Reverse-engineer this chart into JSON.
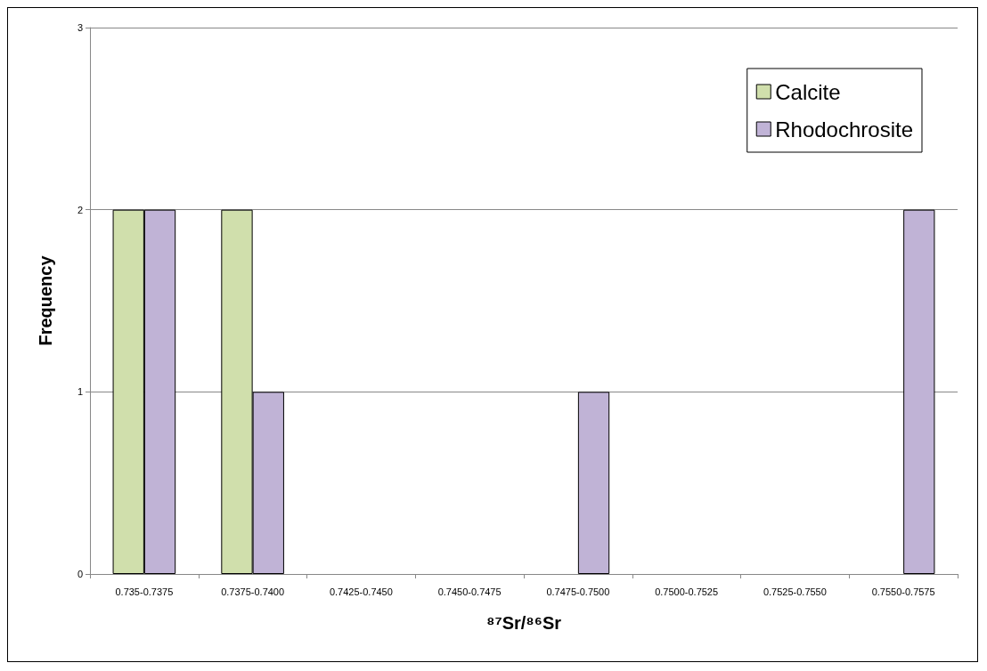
{
  "chart_data": {
    "type": "bar",
    "xlabel": "⁸⁷Sr/⁸⁶Sr",
    "ylabel": "Frequency",
    "categories": [
      "0.735-0.7375",
      "0.7375-0.7400",
      "0.7425-0.7450",
      "0.7450-0.7475",
      "0.7475-0.7500",
      "0.7500-0.7525",
      "0.7525-0.7550",
      "0.7550-0.7575"
    ],
    "series": [
      {
        "name": "Calcite",
        "color": "#d0dfac",
        "values": [
          2,
          2,
          0,
          0,
          0,
          0,
          0,
          0
        ]
      },
      {
        "name": "Rhodochrosite",
        "color": "#c0b3d6",
        "values": [
          2,
          1,
          0,
          0,
          1,
          0,
          0,
          2
        ]
      }
    ],
    "ylim": [
      0,
      3
    ],
    "yticks": [
      0,
      1,
      2,
      3
    ],
    "grid": "y",
    "legend": "top right"
  }
}
